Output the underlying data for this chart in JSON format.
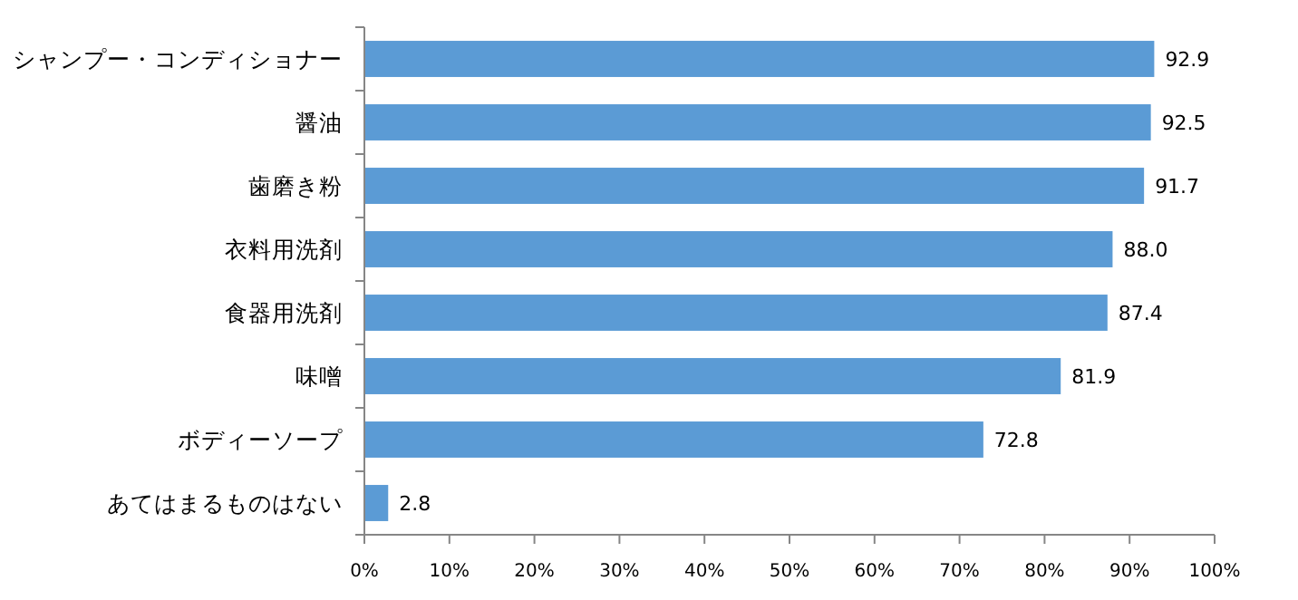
{
  "chart_data": {
    "type": "bar",
    "orientation": "horizontal",
    "categories": [
      "シャンプー・コンディショナー",
      "醤油",
      "歯磨き粉",
      "衣料用洗剤",
      "食器用洗剤",
      "味噌",
      "ボディーソープ",
      "あてはまるものはない"
    ],
    "values": [
      92.9,
      92.5,
      91.7,
      88.0,
      87.4,
      81.9,
      72.8,
      2.8
    ],
    "value_labels": [
      "92.9",
      "92.5",
      "91.7",
      "88.0",
      "87.4",
      "81.9",
      "72.8",
      "2.8"
    ],
    "color": "#5b9bd5",
    "xlim": [
      0,
      100
    ],
    "xticks": [
      {
        "value": 0,
        "label": "0%"
      },
      {
        "value": 10,
        "label": "10%"
      },
      {
        "value": 20,
        "label": "20%"
      },
      {
        "value": 30,
        "label": "30%"
      },
      {
        "value": 40,
        "label": "40%"
      },
      {
        "value": 50,
        "label": "50%"
      },
      {
        "value": 60,
        "label": "60%"
      },
      {
        "value": 70,
        "label": "70%"
      },
      {
        "value": 80,
        "label": "80%"
      },
      {
        "value": 90,
        "label": "90%"
      },
      {
        "value": 100,
        "label": "100%"
      }
    ]
  }
}
